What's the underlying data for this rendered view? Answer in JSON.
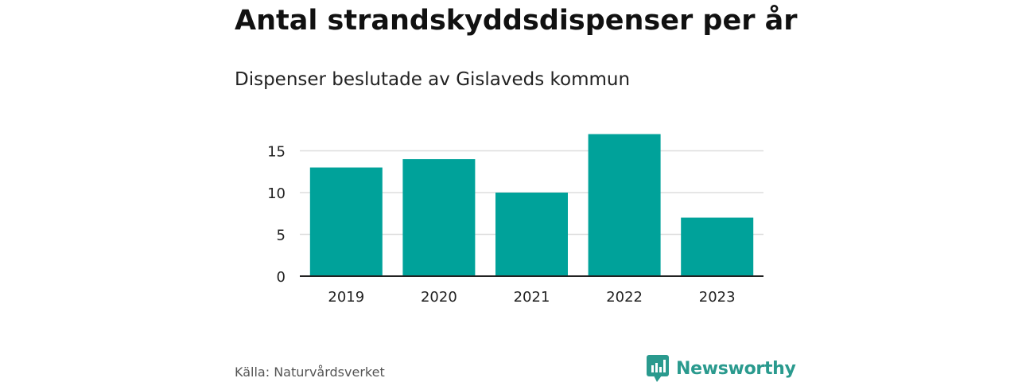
{
  "header": {
    "title": "Antal strandskyddsdispenser per år",
    "subtitle": "Dispenser beslutade av Gislaveds kommun"
  },
  "footer": {
    "source": "Källa: Naturvårdsverket",
    "brand": "Newsworthy",
    "brand_icon": "newsworthy-logo-icon"
  },
  "colors": {
    "bar": "#00a29a",
    "brand": "#2a9a8e",
    "grid": "#dddddd",
    "axis": "#222222"
  },
  "chart_data": {
    "type": "bar",
    "title": "Antal strandskyddsdispenser per år",
    "subtitle": "Dispenser beslutade av Gislaveds kommun",
    "categories": [
      "2019",
      "2020",
      "2021",
      "2022",
      "2023"
    ],
    "values": [
      13,
      14,
      10,
      17,
      7
    ],
    "xlabel": "",
    "ylabel": "",
    "ylim": [
      0,
      17
    ],
    "yticks": [
      0,
      5,
      10,
      15
    ],
    "grid": true,
    "legend": "none"
  }
}
